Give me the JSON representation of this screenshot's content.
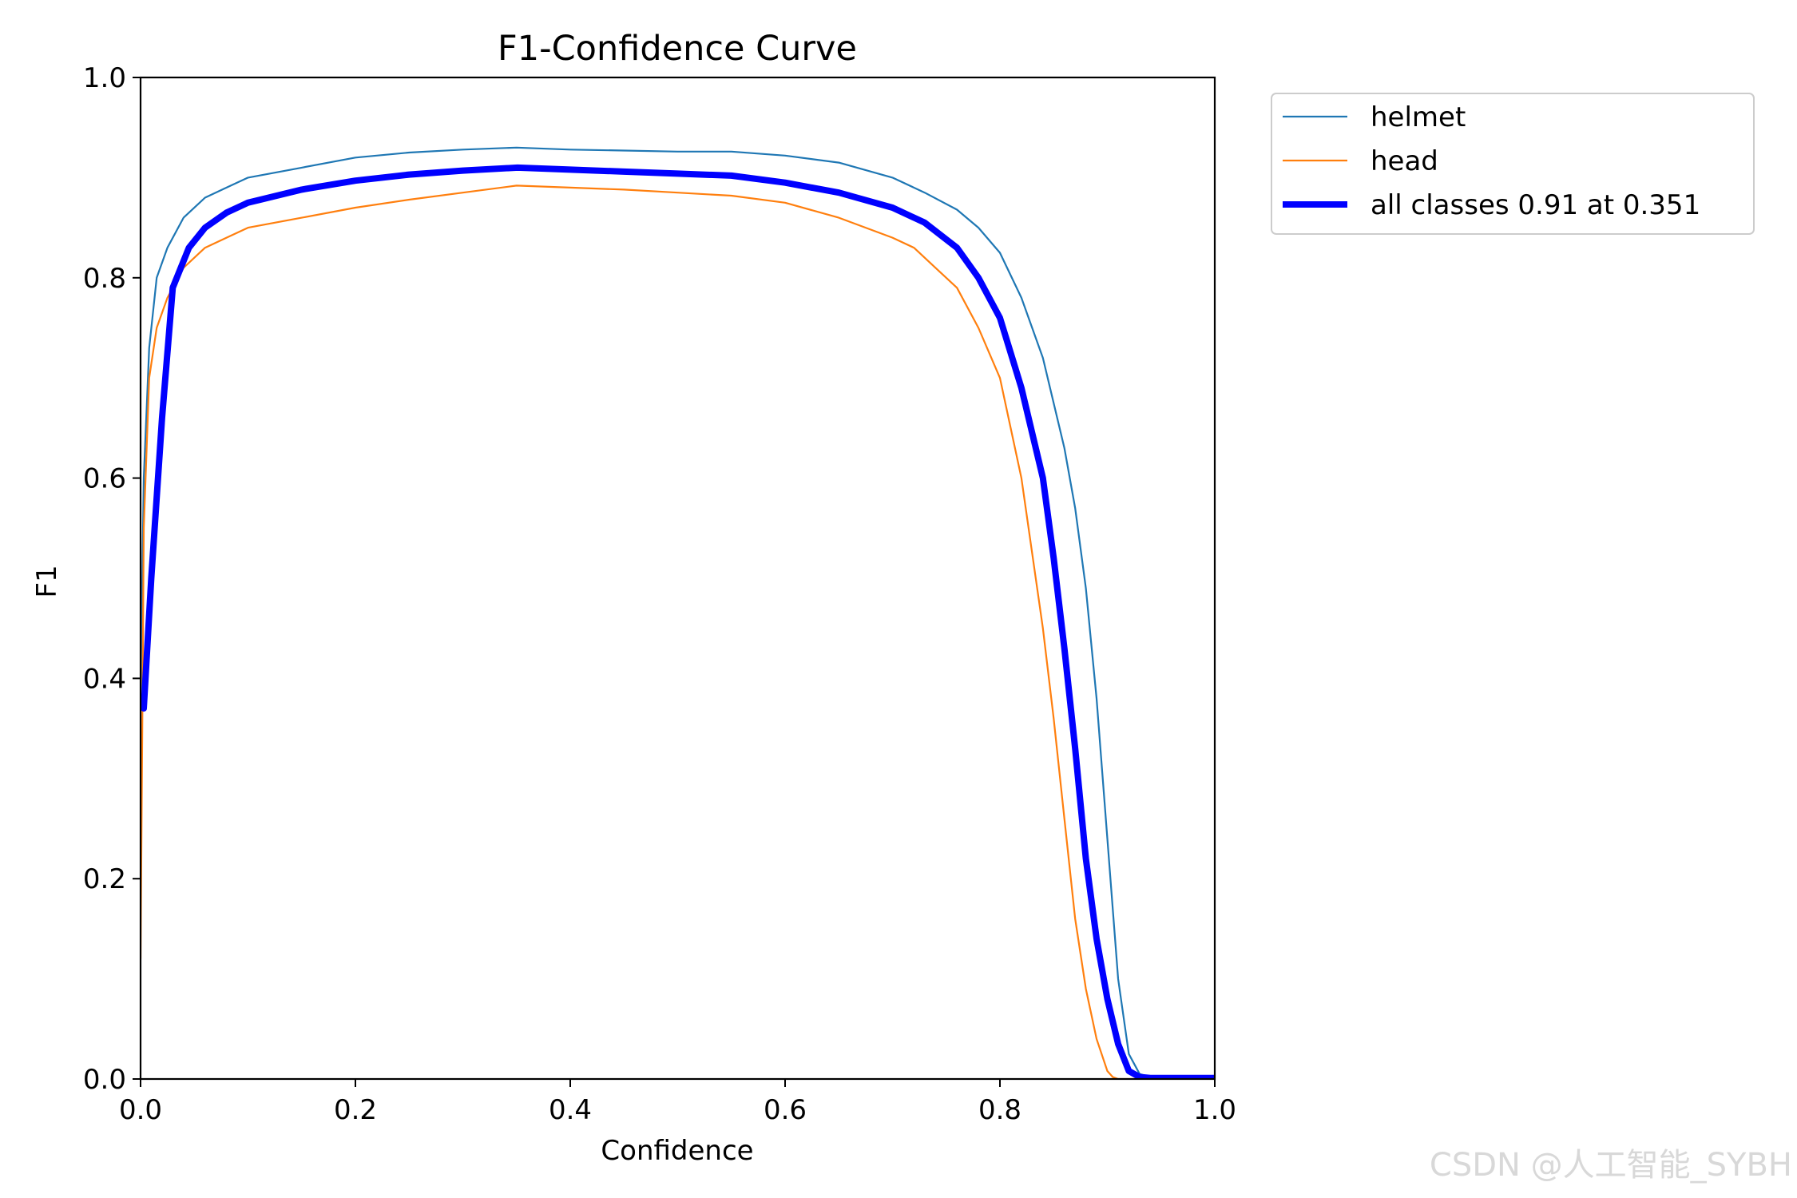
{
  "chart_data": {
    "type": "line",
    "title": "F1-Confidence Curve",
    "xlabel": "Confidence",
    "ylabel": "F1",
    "xlim": [
      0.0,
      1.0
    ],
    "ylim": [
      0.0,
      1.0
    ],
    "xticks": [
      0.0,
      0.2,
      0.4,
      0.6,
      0.8,
      1.0
    ],
    "xtick_labels": [
      "0.0",
      "0.2",
      "0.4",
      "0.6",
      "0.8",
      "1.0"
    ],
    "yticks": [
      0.0,
      0.2,
      0.4,
      0.6,
      0.8,
      1.0
    ],
    "ytick_labels": [
      "0.0",
      "0.2",
      "0.4",
      "0.6",
      "0.8",
      "1.0"
    ],
    "grid": false,
    "legend_position": "outside-top-right",
    "series": [
      {
        "name": "helmet",
        "color": "#1f77b4",
        "line": "thin",
        "x": [
          0.0,
          0.003,
          0.008,
          0.015,
          0.025,
          0.04,
          0.06,
          0.08,
          0.1,
          0.15,
          0.2,
          0.25,
          0.3,
          0.35,
          0.4,
          0.45,
          0.5,
          0.55,
          0.6,
          0.65,
          0.7,
          0.73,
          0.76,
          0.78,
          0.8,
          0.82,
          0.84,
          0.86,
          0.87,
          0.88,
          0.89,
          0.9,
          0.91,
          0.92,
          0.93,
          0.94,
          0.95,
          1.0
        ],
        "y": [
          0.38,
          0.6,
          0.73,
          0.8,
          0.83,
          0.86,
          0.88,
          0.89,
          0.9,
          0.91,
          0.92,
          0.925,
          0.928,
          0.93,
          0.928,
          0.927,
          0.926,
          0.926,
          0.922,
          0.915,
          0.9,
          0.885,
          0.868,
          0.85,
          0.825,
          0.78,
          0.72,
          0.63,
          0.57,
          0.49,
          0.38,
          0.24,
          0.1,
          0.025,
          0.005,
          0.002,
          0.002,
          0.002
        ]
      },
      {
        "name": "head",
        "color": "#ff7f0e",
        "line": "thin",
        "x": [
          0.0,
          0.003,
          0.008,
          0.015,
          0.025,
          0.04,
          0.06,
          0.08,
          0.1,
          0.15,
          0.2,
          0.25,
          0.3,
          0.35,
          0.4,
          0.45,
          0.5,
          0.55,
          0.6,
          0.65,
          0.7,
          0.72,
          0.74,
          0.76,
          0.78,
          0.8,
          0.82,
          0.84,
          0.85,
          0.86,
          0.87,
          0.88,
          0.89,
          0.9,
          0.905,
          0.91,
          1.0
        ],
        "y": [
          0.12,
          0.55,
          0.7,
          0.75,
          0.78,
          0.81,
          0.83,
          0.84,
          0.85,
          0.86,
          0.87,
          0.878,
          0.885,
          0.892,
          0.89,
          0.888,
          0.885,
          0.882,
          0.875,
          0.86,
          0.84,
          0.83,
          0.81,
          0.79,
          0.75,
          0.7,
          0.6,
          0.45,
          0.36,
          0.26,
          0.16,
          0.09,
          0.04,
          0.008,
          0.002,
          0.0,
          0.0
        ]
      },
      {
        "name": "all classes 0.91 at 0.351",
        "color": "#0000ff",
        "line": "thick",
        "x": [
          0.003,
          0.01,
          0.02,
          0.03,
          0.045,
          0.06,
          0.08,
          0.1,
          0.15,
          0.2,
          0.25,
          0.3,
          0.351,
          0.4,
          0.45,
          0.5,
          0.55,
          0.6,
          0.65,
          0.7,
          0.73,
          0.76,
          0.78,
          0.8,
          0.82,
          0.84,
          0.85,
          0.86,
          0.87,
          0.88,
          0.89,
          0.9,
          0.91,
          0.92,
          0.93,
          0.94,
          0.96,
          1.0
        ],
        "y": [
          0.37,
          0.5,
          0.66,
          0.79,
          0.83,
          0.85,
          0.865,
          0.875,
          0.888,
          0.897,
          0.903,
          0.907,
          0.91,
          0.908,
          0.906,
          0.904,
          0.902,
          0.895,
          0.885,
          0.87,
          0.855,
          0.83,
          0.8,
          0.76,
          0.69,
          0.6,
          0.52,
          0.43,
          0.33,
          0.22,
          0.14,
          0.08,
          0.035,
          0.008,
          0.002,
          0.001,
          0.001,
          0.001
        ]
      }
    ]
  },
  "watermark": "CSDN @人工智能_SYBH"
}
